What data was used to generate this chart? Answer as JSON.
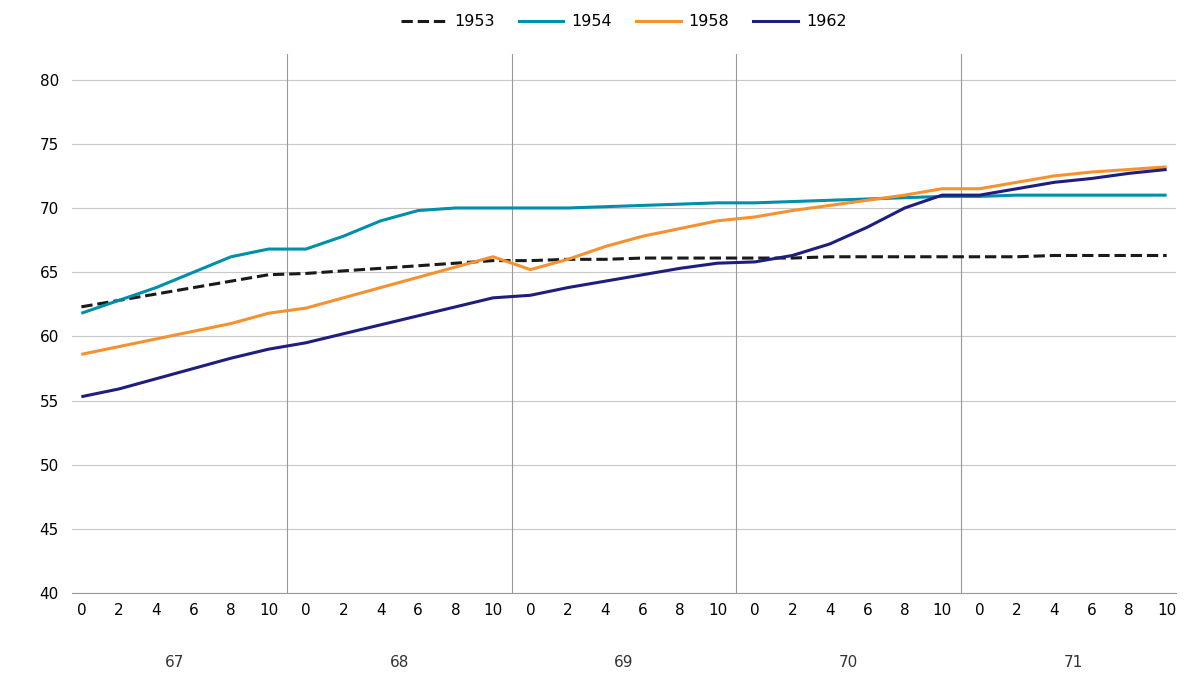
{
  "years": [
    67,
    68,
    69,
    70,
    71
  ],
  "months": [
    0,
    2,
    4,
    6,
    8,
    10
  ],
  "series": {
    "1953": {
      "color": "#1a1a1a",
      "linestyle": "dashed",
      "linewidth": 2.2,
      "values": [
        62.3,
        62.8,
        63.3,
        63.8,
        64.3,
        64.8,
        64.9,
        65.1,
        65.3,
        65.5,
        65.7,
        65.9,
        65.9,
        66.0,
        66.0,
        66.1,
        66.1,
        66.1,
        66.1,
        66.1,
        66.2,
        66.2,
        66.2,
        66.2,
        66.2,
        66.2,
        66.3,
        66.3,
        66.3,
        66.3
      ]
    },
    "1954": {
      "color": "#008faa",
      "linestyle": "solid",
      "linewidth": 2.2,
      "values": [
        61.8,
        62.8,
        63.8,
        65.0,
        66.2,
        66.8,
        66.8,
        67.8,
        69.0,
        69.8,
        70.0,
        70.0,
        70.0,
        70.0,
        70.1,
        70.2,
        70.3,
        70.4,
        70.4,
        70.5,
        70.6,
        70.7,
        70.8,
        70.9,
        70.9,
        71.0,
        71.0,
        71.0,
        71.0,
        71.0
      ]
    },
    "1958": {
      "color": "#f5922f",
      "linestyle": "solid",
      "linewidth": 2.2,
      "values": [
        58.6,
        59.2,
        59.8,
        60.4,
        61.0,
        61.8,
        62.2,
        63.0,
        63.8,
        64.6,
        65.4,
        66.2,
        65.2,
        66.0,
        67.0,
        67.8,
        68.4,
        69.0,
        69.3,
        69.8,
        70.2,
        70.6,
        71.0,
        71.5,
        71.5,
        72.0,
        72.5,
        72.8,
        73.0,
        73.2
      ]
    },
    "1962": {
      "color": "#1e1e7e",
      "linestyle": "solid",
      "linewidth": 2.2,
      "values": [
        55.3,
        55.9,
        56.7,
        57.5,
        58.3,
        59.0,
        59.5,
        60.2,
        60.9,
        61.6,
        62.3,
        63.0,
        63.2,
        63.8,
        64.3,
        64.8,
        65.3,
        65.7,
        65.8,
        66.3,
        67.2,
        68.5,
        70.0,
        71.0,
        71.0,
        71.5,
        72.0,
        72.3,
        72.7,
        73.0
      ]
    }
  },
  "ylim": [
    40,
    82
  ],
  "yticks": [
    40,
    45,
    50,
    55,
    60,
    65,
    70,
    75,
    80
  ],
  "background_color": "#ffffff",
  "grid_color": "#c8c8c8",
  "tick_fontsize": 11,
  "legend_fontsize": 11.5
}
